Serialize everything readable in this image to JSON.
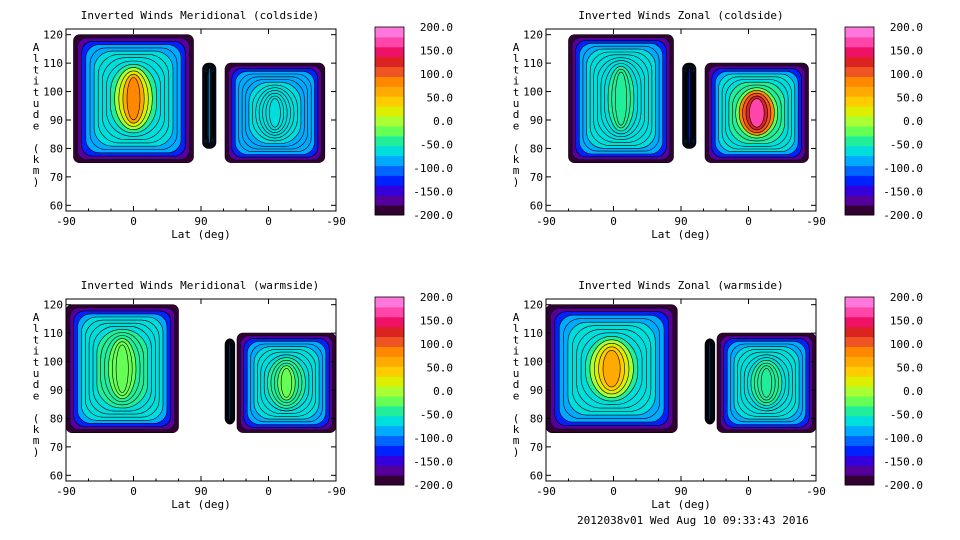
{
  "footer": "2012038v01 Wed Aug 10 09:33:43 2016",
  "colorbar": {
    "labels": [
      "200.0",
      "150.0",
      "100.0",
      "50.0",
      "0.0",
      "-50.0",
      "-100.0",
      "-150.0",
      "-200.0"
    ],
    "range": [
      -200,
      200
    ],
    "colors": [
      "#330033",
      "#55009a",
      "#3300dd",
      "#0022ff",
      "#0066ff",
      "#00aaff",
      "#00dddd",
      "#22ee99",
      "#66ff55",
      "#aaff33",
      "#ddee00",
      "#ffcc00",
      "#ffaa00",
      "#ff8800",
      "#ee5522",
      "#dd2222",
      "#ee1166",
      "#ff44aa",
      "#ff77dd"
    ]
  },
  "chart_data": [
    {
      "type": "heatmap",
      "title": "Inverted Winds Meridional (coldside)",
      "xlabel": "Lat (deg)",
      "ylabel": "Altitude (km)",
      "xticks": [
        "-90",
        "0",
        "90",
        "0",
        "-90"
      ],
      "yticks": [
        "60",
        "70",
        "80",
        "90",
        "100",
        "110",
        "120"
      ],
      "ylim": [
        58,
        122
      ],
      "blobs": [
        {
          "xs": [
            -80,
            80
          ],
          "ys": [
            75,
            120
          ],
          "base": -25,
          "top": 80
        },
        {
          "xs": [
            92,
            110
          ],
          "ys": [
            80,
            110
          ],
          "base": -90
        },
        {
          "xs": [
            122,
            255
          ],
          "ys": [
            75,
            110
          ],
          "base": -60
        }
      ]
    },
    {
      "type": "heatmap",
      "title": "Inverted Winds Zonal (coldside)",
      "xlabel": "Lat (deg)",
      "ylabel": "Altitude (km)",
      "xticks": [
        "-90",
        "0",
        "90",
        "0",
        "-90"
      ],
      "yticks": [
        "60",
        "70",
        "80",
        "90",
        "100",
        "110",
        "120"
      ],
      "ylim": [
        58,
        122
      ],
      "blobs": [
        {
          "xs": [
            -60,
            80
          ],
          "ys": [
            75,
            120
          ],
          "base": -40
        },
        {
          "xs": [
            92,
            110
          ],
          "ys": [
            80,
            110
          ],
          "base": -120
        },
        {
          "xs": [
            122,
            260
          ],
          "ys": [
            75,
            110
          ],
          "base": 20,
          "hot": true
        }
      ]
    },
    {
      "type": "heatmap",
      "title": "Inverted Winds Meridional (warmside)",
      "xlabel": "Lat (deg)",
      "ylabel": "Altitude (km)",
      "xticks": [
        "-90",
        "0",
        "90",
        "0",
        "-90"
      ],
      "yticks": [
        "60",
        "70",
        "80",
        "90",
        "100",
        "110",
        "120"
      ],
      "ylim": [
        58,
        122
      ],
      "blobs": [
        {
          "xs": [
            -90,
            60
          ],
          "ys": [
            75,
            120
          ],
          "base": -10
        },
        {
          "xs": [
            122,
            135
          ],
          "ys": [
            78,
            108
          ],
          "base": -110
        },
        {
          "xs": [
            138,
            270
          ],
          "ys": [
            75,
            110
          ],
          "base": -20
        }
      ]
    },
    {
      "type": "heatmap",
      "title": "Inverted Winds Zonal (warmside)",
      "xlabel": "Lat (deg)",
      "ylabel": "Altitude (km)",
      "xticks": [
        "-90",
        "0",
        "90",
        "0",
        "-90"
      ],
      "yticks": [
        "60",
        "70",
        "80",
        "90",
        "100",
        "110",
        "120"
      ],
      "ylim": [
        58,
        122
      ],
      "blobs": [
        {
          "xs": [
            -90,
            85
          ],
          "ys": [
            75,
            120
          ],
          "base": -25,
          "top": 60
        },
        {
          "xs": [
            122,
            135
          ],
          "ys": [
            78,
            108
          ],
          "base": -110
        },
        {
          "xs": [
            138,
            270
          ],
          "ys": [
            75,
            110
          ],
          "base": -35
        }
      ]
    }
  ]
}
